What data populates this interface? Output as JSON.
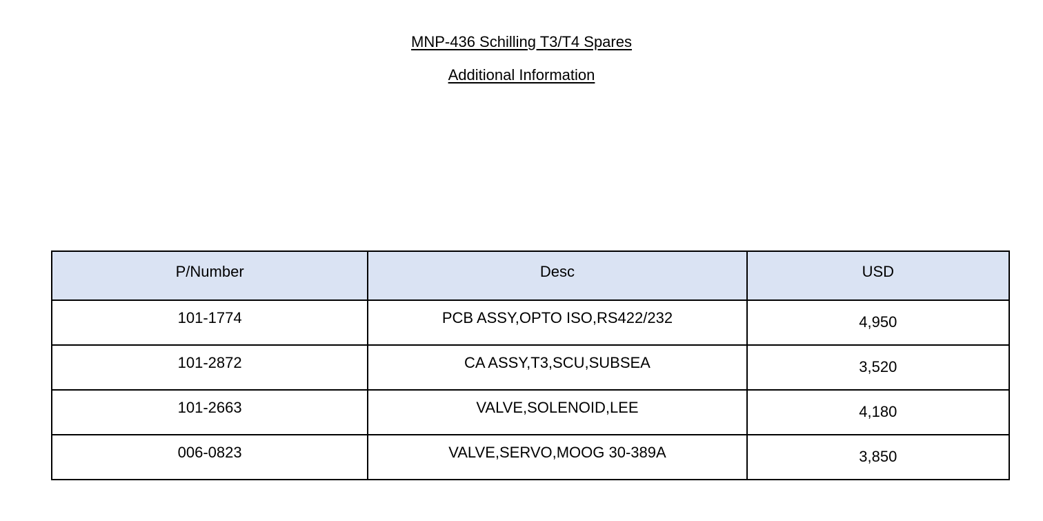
{
  "document": {
    "title": "MNP-436 Schilling T3/T4 Spares",
    "subtitle": "Additional Information"
  },
  "table": {
    "headers": [
      "P/Number",
      "Desc",
      "USD"
    ],
    "header_bg": "#dae3f3",
    "rows": [
      [
        "101-1774",
        "PCB ASSY,OPTO ISO,RS422/232",
        "4,950"
      ],
      [
        "101-2872",
        "CA ASSY,T3,SCU,SUBSEA",
        "3,520"
      ],
      [
        "101-2663",
        "VALVE,SOLENOID,LEE",
        "4,180"
      ],
      [
        "006-0823",
        "VALVE,SERVO,MOOG 30-389A",
        "3,850"
      ]
    ]
  }
}
